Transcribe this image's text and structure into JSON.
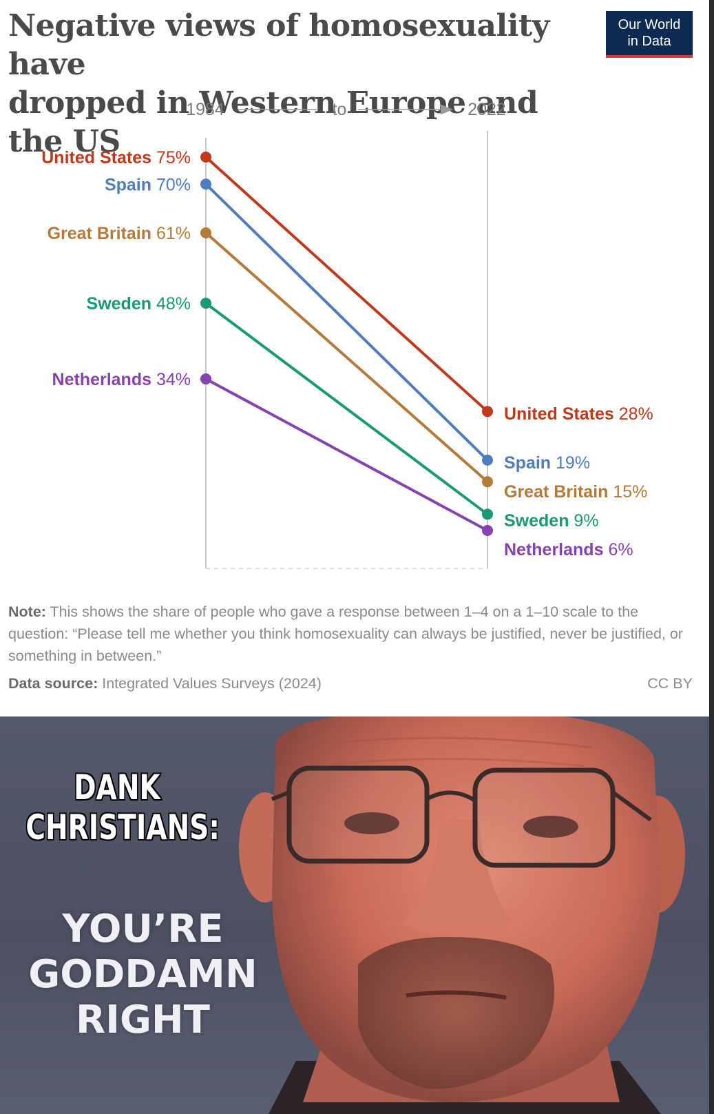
{
  "header": {
    "title_line1": "Negative views of homosexuality have",
    "title_line2": "dropped in Western Europe and the US",
    "logo_line1": "Our World",
    "logo_line2": "in Data"
  },
  "chart_data": {
    "type": "line",
    "x": [
      "1984",
      "2022"
    ],
    "x_connector": "to",
    "ylim": [
      0,
      80
    ],
    "series": [
      {
        "name": "United States",
        "color": "#c0391b",
        "values": [
          75,
          28
        ],
        "labels": [
          "75%",
          "28%"
        ]
      },
      {
        "name": "Spain",
        "color": "#4f7bbf",
        "values": [
          70,
          19
        ],
        "labels": [
          "70%",
          "19%"
        ]
      },
      {
        "name": "Great Britain",
        "color": "#b47a3a",
        "values": [
          61,
          15
        ],
        "labels": [
          "61%",
          "15%"
        ]
      },
      {
        "name": "Sweden",
        "color": "#1a9a72",
        "values": [
          48,
          9
        ],
        "labels": [
          "48%",
          "9%"
        ]
      },
      {
        "name": "Netherlands",
        "color": "#8542b0",
        "values": [
          34,
          6
        ],
        "labels": [
          "34%",
          "6%"
        ]
      }
    ]
  },
  "footer": {
    "note_label": "Note:",
    "note_text": " This shows the share of people who gave a response between 1–4 on a 1–10 scale to the question: “Please tell me whether you think homosexuality can always be justified, never be justified, or something in between.”",
    "source_label": "Data source:",
    "source_text": " Integrated Values Surveys (2024)",
    "license": "CC BY"
  },
  "meme": {
    "top_line1": "DANK",
    "top_line2": "CHRISTIANS:",
    "bottom_line1": "YOU’RE",
    "bottom_line2": "GODDAMN",
    "bottom_line3": "RIGHT"
  }
}
